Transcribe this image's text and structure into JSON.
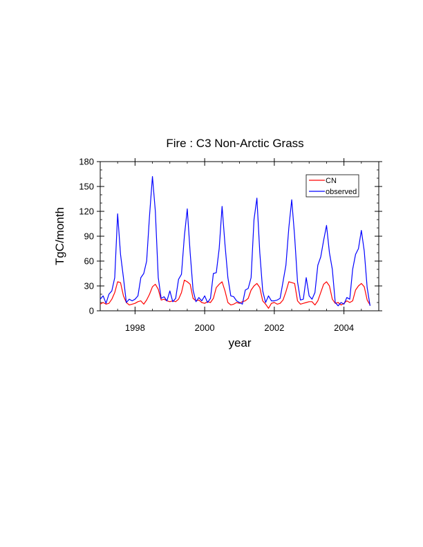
{
  "chart_data": {
    "type": "line",
    "title": "Fire : C3 Non-Arctic Grass",
    "xlabel": "year",
    "ylabel": "TgC/month",
    "xlim": [
      1997.0,
      2005.0
    ],
    "ylim": [
      0,
      180
    ],
    "x_ticks": [
      1998,
      2000,
      2002,
      2004
    ],
    "x_tick_labels": [
      "1998",
      "2000",
      "2002",
      "2004"
    ],
    "y_ticks": [
      0,
      30,
      60,
      90,
      120,
      150,
      180
    ],
    "y_tick_labels": [
      "0",
      "30",
      "60",
      "90",
      "120",
      "150",
      "180"
    ],
    "grid": false,
    "legend_position": "top-right",
    "x_start": 1997.0,
    "x_step_months": 1,
    "series": [
      {
        "name": "CN",
        "color": "#ff0000",
        "values": [
          8,
          10,
          8,
          9,
          14,
          22,
          35,
          34,
          18,
          10,
          7,
          8,
          9,
          11,
          12,
          8,
          13,
          20,
          29,
          32,
          26,
          13,
          14,
          12,
          11,
          12,
          11,
          14,
          22,
          37,
          35,
          32,
          15,
          12,
          13,
          10,
          9,
          11,
          10,
          15,
          28,
          32,
          35,
          24,
          10,
          7,
          8,
          10,
          9,
          11,
          12,
          15,
          25,
          30,
          33,
          28,
          12,
          8,
          3,
          9,
          10,
          8,
          9,
          13,
          23,
          35,
          34,
          33,
          12,
          8,
          9,
          10,
          11,
          11,
          7,
          12,
          22,
          32,
          35,
          30,
          14,
          9,
          10,
          7,
          9,
          12,
          10,
          12,
          25,
          30,
          33,
          29,
          13,
          7
        ]
      },
      {
        "name": "observed",
        "color": "#0000ff",
        "values": [
          14,
          18,
          9,
          20,
          24,
          40,
          117,
          68,
          40,
          10,
          14,
          12,
          14,
          18,
          40,
          45,
          60,
          115,
          162,
          120,
          40,
          15,
          17,
          12,
          24,
          11,
          15,
          38,
          44,
          90,
          123,
          70,
          25,
          11,
          16,
          12,
          18,
          10,
          15,
          45,
          46,
          75,
          126,
          80,
          40,
          18,
          17,
          12,
          10,
          8,
          25,
          27,
          40,
          110,
          136,
          70,
          24,
          10,
          18,
          12,
          12,
          13,
          15,
          35,
          55,
          100,
          134,
          90,
          35,
          13,
          14,
          40,
          18,
          14,
          22,
          55,
          65,
          85,
          103,
          70,
          50,
          10,
          6,
          10,
          8,
          16,
          14,
          50,
          68,
          75,
          97,
          72,
          28,
          6
        ]
      }
    ]
  }
}
